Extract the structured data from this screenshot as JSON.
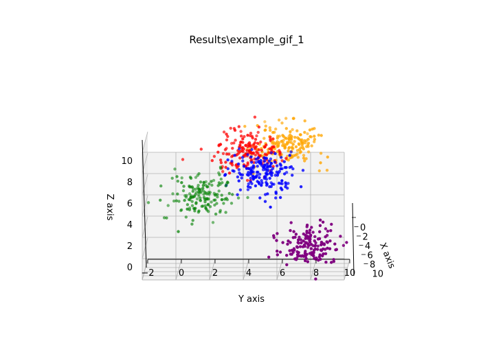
{
  "chart_data": {
    "type": "scatter",
    "title": "Results\\example_gif_1",
    "xlabel": "X axis",
    "ylabel": "Y axis",
    "zlabel": "Z axis",
    "xlim": [
      0,
      10
    ],
    "ylim": [
      -2,
      10
    ],
    "zlim": [
      0,
      12
    ],
    "xticks": [
      "0",
      "2",
      "4",
      "6",
      "8",
      "10"
    ],
    "yticks": [
      "−2",
      "0",
      "2",
      "4",
      "6",
      "8",
      "10"
    ],
    "zticks": [
      "0",
      "2",
      "4",
      "6",
      "8",
      "10"
    ],
    "grid": true,
    "view": "3d",
    "colors": {
      "purple": "#800080",
      "orange": "#ffa500",
      "red": "#ff0000",
      "blue": "#0000ff",
      "green": "#008000",
      "grid": "#b0b0b0",
      "pane": "#f2f2f2"
    },
    "series": [
      {
        "color": "#800080",
        "center": [
          7.8,
          7.8,
          2.8
        ],
        "spread": [
          0.9,
          0.9,
          0.9
        ],
        "count": 160,
        "y_range_approx": [
          6,
          10
        ],
        "z_range_approx": [
          1.2,
          4.5
        ]
      },
      {
        "color": "#ffa500",
        "center": [
          3.5,
          6.5,
          11.5
        ],
        "spread": [
          1.0,
          1.0,
          1.0
        ],
        "count": 170,
        "y_range_approx": [
          4,
          8.5
        ],
        "z_range_approx": [
          10,
          13
        ]
      },
      {
        "color": "#ff0000",
        "center": [
          3.5,
          4.2,
          10.8
        ],
        "spread": [
          1.0,
          1.0,
          1.0
        ],
        "count": 160,
        "y_range_approx": [
          2,
          6.5
        ],
        "z_range_approx": [
          9,
          12.5
        ]
      },
      {
        "color": "#0000ff",
        "center": [
          4.5,
          5.0,
          8.8
        ],
        "spread": [
          1.0,
          1.0,
          1.0
        ],
        "count": 170,
        "y_range_approx": [
          3,
          7
        ],
        "z_range_approx": [
          7,
          10.5
        ]
      },
      {
        "color": "#008000",
        "center": [
          1.0,
          1.2,
          6.2
        ],
        "spread": [
          1.0,
          1.0,
          1.0
        ],
        "count": 160,
        "y_range_approx": [
          -1,
          3.5
        ],
        "z_range_approx": [
          4.5,
          8
        ]
      }
    ]
  }
}
